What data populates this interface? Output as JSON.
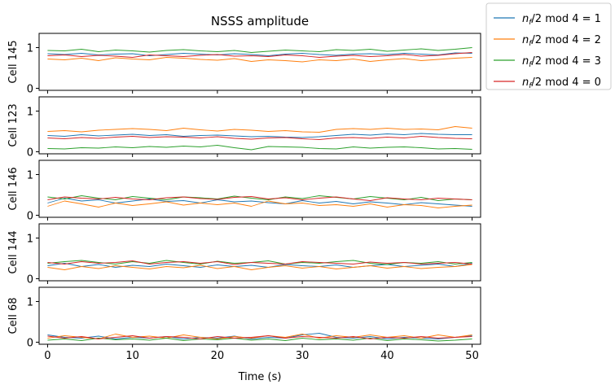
{
  "chart_data": {
    "type": "line",
    "title": "NSSS amplitude",
    "xlabel": "Time (s)",
    "xlim": [
      -1,
      51
    ],
    "xticks": [
      0,
      10,
      20,
      30,
      40,
      50
    ],
    "ylim": [
      -0.05,
      1.35
    ],
    "yticks": [
      0,
      1
    ],
    "legend_position": "outside-top-right",
    "series_meta": [
      {
        "name": "n_f/2 mod 4 = 1",
        "color": "#1f77b4"
      },
      {
        "name": "n_f/2 mod 4 = 2",
        "color": "#ff7f0e"
      },
      {
        "name": "n_f/2 mod 4 = 3",
        "color": "#2ca02c"
      },
      {
        "name": "n_f/2 mod 4 = 0",
        "color": "#d62728"
      }
    ],
    "x": [
      0,
      2,
      4,
      6,
      8,
      10,
      12,
      14,
      16,
      18,
      20,
      22,
      24,
      26,
      28,
      30,
      32,
      34,
      36,
      38,
      40,
      42,
      44,
      46,
      48,
      50
    ],
    "panels": [
      {
        "ylabel": "Cell 145",
        "series": [
          {
            "name": "n_f/2 mod 4 = 1",
            "values": [
              0.85,
              0.83,
              0.86,
              0.82,
              0.84,
              0.85,
              0.8,
              0.83,
              0.86,
              0.84,
              0.82,
              0.85,
              0.83,
              0.8,
              0.84,
              0.86,
              0.83,
              0.81,
              0.84,
              0.85,
              0.83,
              0.86,
              0.84,
              0.82,
              0.87,
              0.86
            ]
          },
          {
            "name": "n_f/2 mod 4 = 2",
            "values": [
              0.72,
              0.7,
              0.74,
              0.68,
              0.75,
              0.72,
              0.7,
              0.76,
              0.74,
              0.71,
              0.69,
              0.73,
              0.66,
              0.7,
              0.68,
              0.65,
              0.7,
              0.68,
              0.72,
              0.66,
              0.7,
              0.73,
              0.68,
              0.71,
              0.74,
              0.76
            ]
          },
          {
            "name": "n_f/2 mod 4 = 3",
            "values": [
              0.93,
              0.92,
              0.96,
              0.9,
              0.94,
              0.92,
              0.89,
              0.93,
              0.95,
              0.92,
              0.9,
              0.93,
              0.88,
              0.91,
              0.94,
              0.92,
              0.9,
              0.95,
              0.93,
              0.96,
              0.91,
              0.94,
              0.97,
              0.93,
              0.96,
              1.0
            ]
          },
          {
            "name": "n_f/2 mod 4 = 0",
            "values": [
              0.8,
              0.82,
              0.78,
              0.81,
              0.79,
              0.76,
              0.82,
              0.8,
              0.78,
              0.81,
              0.83,
              0.79,
              0.8,
              0.78,
              0.82,
              0.8,
              0.76,
              0.79,
              0.81,
              0.78,
              0.8,
              0.83,
              0.79,
              0.81,
              0.85,
              0.88
            ]
          }
        ]
      },
      {
        "ylabel": "Cell 123",
        "series": [
          {
            "name": "n_f/2 mod 4 = 1",
            "values": [
              0.4,
              0.38,
              0.42,
              0.39,
              0.41,
              0.43,
              0.4,
              0.42,
              0.38,
              0.4,
              0.41,
              0.39,
              0.37,
              0.38,
              0.36,
              0.35,
              0.37,
              0.4,
              0.43,
              0.41,
              0.44,
              0.42,
              0.45,
              0.43,
              0.42,
              0.42
            ]
          },
          {
            "name": "n_f/2 mod 4 = 2",
            "values": [
              0.5,
              0.52,
              0.49,
              0.53,
              0.55,
              0.57,
              0.55,
              0.52,
              0.58,
              0.54,
              0.51,
              0.55,
              0.53,
              0.5,
              0.52,
              0.49,
              0.48,
              0.55,
              0.57,
              0.55,
              0.58,
              0.55,
              0.56,
              0.54,
              0.62,
              0.58
            ]
          },
          {
            "name": "n_f/2 mod 4 = 3",
            "values": [
              0.08,
              0.07,
              0.1,
              0.09,
              0.12,
              0.1,
              0.13,
              0.11,
              0.14,
              0.12,
              0.16,
              0.1,
              0.05,
              0.13,
              0.12,
              0.11,
              0.08,
              0.07,
              0.12,
              0.09,
              0.11,
              0.12,
              0.1,
              0.07,
              0.08,
              0.06
            ]
          },
          {
            "name": "n_f/2 mod 4 = 0",
            "values": [
              0.34,
              0.32,
              0.35,
              0.33,
              0.36,
              0.38,
              0.35,
              0.37,
              0.36,
              0.34,
              0.37,
              0.33,
              0.31,
              0.34,
              0.35,
              0.32,
              0.3,
              0.34,
              0.35,
              0.33,
              0.36,
              0.34,
              0.38,
              0.35,
              0.33,
              0.32
            ]
          }
        ]
      },
      {
        "ylabel": "Cell 146",
        "series": [
          {
            "name": "n_f/2 mod 4 = 1",
            "values": [
              0.3,
              0.42,
              0.35,
              0.38,
              0.3,
              0.35,
              0.4,
              0.34,
              0.36,
              0.3,
              0.38,
              0.33,
              0.35,
              0.31,
              0.28,
              0.36,
              0.3,
              0.34,
              0.28,
              0.33,
              0.3,
              0.26,
              0.31,
              0.28,
              0.25,
              0.22
            ]
          },
          {
            "name": "n_f/2 mod 4 = 2",
            "values": [
              0.22,
              0.35,
              0.28,
              0.2,
              0.3,
              0.24,
              0.28,
              0.33,
              0.25,
              0.3,
              0.26,
              0.3,
              0.22,
              0.35,
              0.28,
              0.3,
              0.24,
              0.26,
              0.22,
              0.28,
              0.2,
              0.26,
              0.24,
              0.18,
              0.22,
              0.25
            ]
          },
          {
            "name": "n_f/2 mod 4 = 3",
            "values": [
              0.45,
              0.4,
              0.48,
              0.42,
              0.38,
              0.46,
              0.42,
              0.38,
              0.45,
              0.43,
              0.4,
              0.47,
              0.42,
              0.38,
              0.45,
              0.41,
              0.48,
              0.44,
              0.4,
              0.46,
              0.42,
              0.38,
              0.44,
              0.36,
              0.4,
              0.38
            ]
          },
          {
            "name": "n_f/2 mod 4 = 0",
            "values": [
              0.38,
              0.45,
              0.42,
              0.4,
              0.44,
              0.4,
              0.38,
              0.43,
              0.45,
              0.41,
              0.39,
              0.44,
              0.46,
              0.4,
              0.43,
              0.38,
              0.42,
              0.45,
              0.4,
              0.36,
              0.43,
              0.4,
              0.38,
              0.42,
              0.4,
              0.38
            ]
          }
        ]
      },
      {
        "ylabel": "Cell 144",
        "series": [
          {
            "name": "n_f/2 mod 4 = 1",
            "values": [
              0.32,
              0.38,
              0.3,
              0.35,
              0.28,
              0.33,
              0.3,
              0.36,
              0.32,
              0.28,
              0.34,
              0.3,
              0.33,
              0.28,
              0.35,
              0.32,
              0.3,
              0.34,
              0.28,
              0.32,
              0.35,
              0.3,
              0.33,
              0.36,
              0.3,
              0.38
            ]
          },
          {
            "name": "n_f/2 mod 4 = 2",
            "values": [
              0.28,
              0.22,
              0.3,
              0.25,
              0.32,
              0.28,
              0.24,
              0.3,
              0.27,
              0.33,
              0.25,
              0.3,
              0.22,
              0.28,
              0.32,
              0.26,
              0.3,
              0.24,
              0.28,
              0.32,
              0.26,
              0.3,
              0.25,
              0.28,
              0.3,
              0.35
            ]
          },
          {
            "name": "n_f/2 mod 4 = 3",
            "values": [
              0.38,
              0.42,
              0.45,
              0.4,
              0.36,
              0.42,
              0.38,
              0.45,
              0.4,
              0.36,
              0.43,
              0.38,
              0.4,
              0.44,
              0.36,
              0.4,
              0.38,
              0.42,
              0.45,
              0.38,
              0.35,
              0.4,
              0.38,
              0.42,
              0.36,
              0.4
            ]
          },
          {
            "name": "n_f/2 mod 4 = 0",
            "values": [
              0.4,
              0.36,
              0.42,
              0.38,
              0.4,
              0.44,
              0.36,
              0.4,
              0.42,
              0.38,
              0.42,
              0.35,
              0.4,
              0.38,
              0.36,
              0.42,
              0.4,
              0.38,
              0.36,
              0.41,
              0.38,
              0.4,
              0.36,
              0.38,
              0.4,
              0.36
            ]
          }
        ]
      },
      {
        "ylabel": "Cell 68",
        "series": [
          {
            "name": "n_f/2 mod 4 = 1",
            "values": [
              0.18,
              0.12,
              0.1,
              0.15,
              0.08,
              0.12,
              0.1,
              0.14,
              0.08,
              0.12,
              0.1,
              0.15,
              0.08,
              0.12,
              0.1,
              0.18,
              0.22,
              0.12,
              0.1,
              0.14,
              0.08,
              0.12,
              0.1,
              0.08,
              0.12,
              0.16
            ]
          },
          {
            "name": "n_f/2 mod 4 = 2",
            "values": [
              0.1,
              0.16,
              0.12,
              0.08,
              0.2,
              0.12,
              0.15,
              0.1,
              0.18,
              0.12,
              0.08,
              0.14,
              0.1,
              0.16,
              0.12,
              0.2,
              0.1,
              0.16,
              0.12,
              0.18,
              0.12,
              0.16,
              0.1,
              0.18,
              0.12,
              0.18
            ]
          },
          {
            "name": "n_f/2 mod 4 = 3",
            "values": [
              0.05,
              0.08,
              0.04,
              0.1,
              0.06,
              0.08,
              0.05,
              0.1,
              0.04,
              0.08,
              0.06,
              0.1,
              0.05,
              0.08,
              0.04,
              0.1,
              0.06,
              0.08,
              0.05,
              0.1,
              0.04,
              0.08,
              0.06,
              0.03,
              0.05,
              0.08
            ]
          },
          {
            "name": "n_f/2 mod 4 = 0",
            "values": [
              0.15,
              0.1,
              0.14,
              0.08,
              0.12,
              0.16,
              0.1,
              0.14,
              0.12,
              0.08,
              0.14,
              0.1,
              0.12,
              0.16,
              0.1,
              0.14,
              0.12,
              0.1,
              0.14,
              0.08,
              0.12,
              0.1,
              0.14,
              0.1,
              0.12,
              0.14
            ]
          }
        ]
      }
    ]
  }
}
